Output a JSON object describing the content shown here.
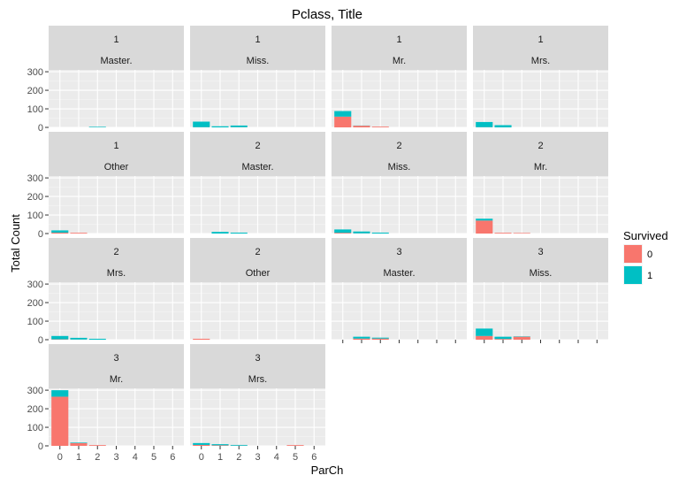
{
  "chart_data": {
    "type": "bar",
    "stacked": true,
    "title": "Pclass, Title",
    "xlabel": "ParCh",
    "ylabel": "Total Count",
    "x_ticks": [
      "0",
      "1",
      "2",
      "3",
      "4",
      "5",
      "6"
    ],
    "y_ticks": [
      "0",
      "100",
      "200",
      "300"
    ],
    "ylim": [
      0,
      310
    ],
    "xlim": [
      -0.6,
      6.6
    ],
    "grid": true,
    "legend": {
      "title": "Survived",
      "position": "right",
      "entries": [
        {
          "label": "0",
          "color": "#F8766D"
        },
        {
          "label": "1",
          "color": "#00BFC4"
        }
      ]
    },
    "facets": [
      {
        "pclass": "1",
        "title": "Master.",
        "bars": [
          {
            "x": 2,
            "s0": 0,
            "s1": 3
          }
        ]
      },
      {
        "pclass": "1",
        "title": "Miss.",
        "bars": [
          {
            "x": 0,
            "s0": 1,
            "s1": 30
          },
          {
            "x": 1,
            "s0": 0,
            "s1": 6
          },
          {
            "x": 2,
            "s0": 1,
            "s1": 9
          }
        ]
      },
      {
        "pclass": "1",
        "title": "Mr.",
        "bars": [
          {
            "x": 0,
            "s0": 58,
            "s1": 30
          },
          {
            "x": 1,
            "s0": 9,
            "s1": 1
          },
          {
            "x": 2,
            "s0": 4,
            "s1": 0
          }
        ]
      },
      {
        "pclass": "1",
        "title": "Mrs.",
        "bars": [
          {
            "x": 0,
            "s0": 1,
            "s1": 28
          },
          {
            "x": 1,
            "s0": 0,
            "s1": 12
          }
        ]
      },
      {
        "pclass": "1",
        "title": "Other",
        "bars": [
          {
            "x": 0,
            "s0": 5,
            "s1": 12
          },
          {
            "x": 1,
            "s0": 4,
            "s1": 0
          }
        ]
      },
      {
        "pclass": "2",
        "title": "Master.",
        "bars": [
          {
            "x": 1,
            "s0": 0,
            "s1": 9
          },
          {
            "x": 2,
            "s0": 0,
            "s1": 5
          }
        ]
      },
      {
        "pclass": "2",
        "title": "Miss.",
        "bars": [
          {
            "x": 0,
            "s0": 4,
            "s1": 18
          },
          {
            "x": 1,
            "s0": 1,
            "s1": 10
          },
          {
            "x": 2,
            "s0": 0,
            "s1": 5
          }
        ]
      },
      {
        "pclass": "2",
        "title": "Mr.",
        "bars": [
          {
            "x": 0,
            "s0": 70,
            "s1": 10
          },
          {
            "x": 1,
            "s0": 4,
            "s1": 0
          },
          {
            "x": 2,
            "s0": 3,
            "s1": 0
          }
        ]
      },
      {
        "pclass": "2",
        "title": "Mrs.",
        "bars": [
          {
            "x": 0,
            "s0": 2,
            "s1": 18
          },
          {
            "x": 1,
            "s0": 1,
            "s1": 9
          },
          {
            "x": 2,
            "s0": 0,
            "s1": 5
          }
        ]
      },
      {
        "pclass": "2",
        "title": "Other",
        "bars": [
          {
            "x": 0,
            "s0": 5,
            "s1": 0
          }
        ]
      },
      {
        "pclass": "3",
        "title": "Master.",
        "bars": [
          {
            "x": 1,
            "s0": 6,
            "s1": 10
          },
          {
            "x": 2,
            "s0": 6,
            "s1": 5
          }
        ]
      },
      {
        "pclass": "3",
        "title": "Miss.",
        "bars": [
          {
            "x": 0,
            "s0": 20,
            "s1": 40
          },
          {
            "x": 1,
            "s0": 4,
            "s1": 12
          },
          {
            "x": 2,
            "s0": 16,
            "s1": 2
          }
        ]
      },
      {
        "pclass": "3",
        "title": "Mr.",
        "bars": [
          {
            "x": 0,
            "s0": 265,
            "s1": 35
          },
          {
            "x": 1,
            "s0": 15,
            "s1": 3
          },
          {
            "x": 2,
            "s0": 4,
            "s1": 0
          }
        ]
      },
      {
        "pclass": "3",
        "title": "Mrs.",
        "bars": [
          {
            "x": 0,
            "s0": 5,
            "s1": 10
          },
          {
            "x": 1,
            "s0": 3,
            "s1": 6
          },
          {
            "x": 2,
            "s0": 1,
            "s1": 4
          },
          {
            "x": 5,
            "s0": 4,
            "s1": 0
          }
        ]
      }
    ]
  }
}
